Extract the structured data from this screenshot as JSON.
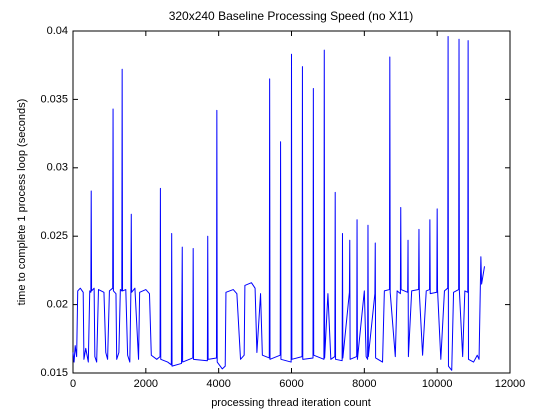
{
  "chart_data": {
    "type": "line",
    "title": "320x240 Baseline Processing Speed (no X11)",
    "xlabel": "processing thread iteration count",
    "ylabel": "time to complete 1 process loop (seconds)",
    "x": [
      0,
      30,
      60,
      100,
      130,
      200,
      280,
      300,
      350,
      420,
      460,
      490,
      500,
      510,
      580,
      600,
      650,
      700,
      850,
      900,
      950,
      1000,
      1090,
      1100,
      1110,
      1180,
      1200,
      1260,
      1300,
      1340,
      1350,
      1360,
      1450,
      1500,
      1560,
      1590,
      1600,
      1610,
      1700,
      1800,
      1830,
      2000,
      2100,
      2150,
      2300,
      2390,
      2400,
      2410,
      2600,
      2700,
      2710,
      2720,
      2980,
      3000,
      3010,
      3290,
      3300,
      3310,
      3690,
      3700,
      3710,
      3940,
      3950,
      3960,
      4100,
      4180,
      4200,
      4400,
      4500,
      4600,
      4700,
      4720,
      4900,
      5000,
      5050,
      5150,
      5200,
      5390,
      5400,
      5410,
      5690,
      5700,
      5710,
      5990,
      6000,
      6010,
      6290,
      6300,
      6310,
      6590,
      6600,
      6610,
      6890,
      6900,
      6910,
      7000,
      7080,
      7190,
      7200,
      7210,
      7390,
      7400,
      7410,
      7590,
      7600,
      7610,
      7790,
      7800,
      7810,
      8000,
      8050,
      8090,
      8100,
      8110,
      8290,
      8300,
      8310,
      8500,
      8550,
      8690,
      8700,
      8710,
      8850,
      8900,
      8990,
      9000,
      9010,
      9190,
      9200,
      9210,
      9300,
      9490,
      9500,
      9510,
      9600,
      9700,
      9790,
      9800,
      9810,
      9990,
      10000,
      10010,
      10100,
      10200,
      10290,
      10300,
      10310,
      10400,
      10450,
      10590,
      10600,
      10610,
      10700,
      10760,
      10840,
      10850,
      10860,
      11000,
      11100,
      11150,
      11200,
      11220,
      11300
    ],
    "series": [
      {
        "color": "#0000ff",
        "values": [
          0.0165,
          0.0158,
          0.017,
          0.0162,
          0.021,
          0.0212,
          0.0209,
          0.016,
          0.0168,
          0.0158,
          0.021,
          0.0209,
          0.0283,
          0.021,
          0.0212,
          0.0162,
          0.0158,
          0.0211,
          0.0209,
          0.0165,
          0.016,
          0.021,
          0.0212,
          0.0343,
          0.021,
          0.0208,
          0.016,
          0.0165,
          0.0211,
          0.021,
          0.0372,
          0.021,
          0.0211,
          0.0163,
          0.0158,
          0.021,
          0.0266,
          0.0209,
          0.0212,
          0.016,
          0.0209,
          0.0211,
          0.0208,
          0.0163,
          0.016,
          0.0162,
          0.0285,
          0.016,
          0.0158,
          0.0156,
          0.0252,
          0.0155,
          0.0157,
          0.0242,
          0.0158,
          0.0161,
          0.0241,
          0.016,
          0.0159,
          0.025,
          0.016,
          0.0161,
          0.0342,
          0.0158,
          0.0153,
          0.0155,
          0.0209,
          0.0211,
          0.0208,
          0.016,
          0.0163,
          0.0214,
          0.0216,
          0.0212,
          0.0165,
          0.0208,
          0.0163,
          0.0161,
          0.0365,
          0.016,
          0.0163,
          0.0319,
          0.016,
          0.0158,
          0.0383,
          0.016,
          0.0162,
          0.0374,
          0.016,
          0.0161,
          0.0358,
          0.0163,
          0.016,
          0.0386,
          0.0161,
          0.0208,
          0.016,
          0.0162,
          0.0282,
          0.016,
          0.0159,
          0.0252,
          0.0161,
          0.0209,
          0.0247,
          0.016,
          0.0162,
          0.0262,
          0.016,
          0.021,
          0.0162,
          0.016,
          0.0258,
          0.0162,
          0.0208,
          0.0245,
          0.0161,
          0.0158,
          0.021,
          0.0211,
          0.0381,
          0.0209,
          0.0162,
          0.021,
          0.0208,
          0.0271,
          0.0211,
          0.0209,
          0.0247,
          0.0162,
          0.021,
          0.0211,
          0.0255,
          0.0209,
          0.0163,
          0.021,
          0.0211,
          0.0262,
          0.0208,
          0.0209,
          0.027,
          0.0211,
          0.016,
          0.021,
          0.0212,
          0.0396,
          0.0155,
          0.0152,
          0.0209,
          0.0211,
          0.0394,
          0.021,
          0.0162,
          0.021,
          0.0209,
          0.0393,
          0.016,
          0.0158,
          0.0163,
          0.016,
          0.0235,
          0.0215,
          0.0228
        ]
      }
    ],
    "xlim": [
      0,
      12000
    ],
    "xticks": [
      0,
      2000,
      4000,
      6000,
      8000,
      10000,
      12000
    ],
    "ylim": [
      0.015,
      0.04
    ],
    "yticks": [
      0.015,
      0.02,
      0.025,
      0.03,
      0.035,
      0.04
    ],
    "grid": false
  }
}
